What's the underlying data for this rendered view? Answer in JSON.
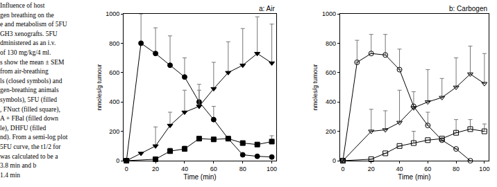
{
  "caption": [
    "Influence of host",
    "gen breathing on the",
    "e and metabolism of 5FU",
    "GH3 xenografts. 5FU",
    "dministered as an i.v.",
    "of 130 mg/kg/4 ml.",
    "s show the mean ± SEM",
    "from air-breathing",
    "ls (closed symbols) and",
    "gen-breathing animals",
    "symbols), 5FU (filled",
    ", FNuct (filled square),",
    "A + FBal (filled down",
    "le), DHFU (filled",
    "nd). From a semi-log plot",
    "5FU curve, the t1/2 for",
    "was calculated to be a",
    "3.8 min and b",
    "1.4 min"
  ],
  "chart_data": [
    {
      "type": "scatter",
      "title": "a: Air",
      "x_label": "Time (min)",
      "y_label": "nmoles/g tumour",
      "x": [
        0,
        10,
        20,
        30,
        40,
        50,
        60,
        70,
        80,
        90,
        100
      ],
      "xlim": [
        -2,
        103
      ],
      "xticks": [
        0,
        20,
        40,
        60,
        80,
        100
      ],
      "ylim": [
        0,
        1000
      ],
      "yticks": [
        0,
        200,
        400,
        600,
        800,
        1000
      ],
      "series": [
        {
          "color": "#000000",
          "marker": "circle",
          "line_style": "solid",
          "values": [
            0,
            800,
            730,
            650,
            570,
            400,
            280,
            150,
            40,
            30,
            25
          ],
          "error": [
            null,
            200,
            175,
            200,
            130,
            120,
            90,
            null,
            null,
            null,
            null
          ]
        },
        {
          "color": "#000000",
          "marker": "square",
          "line_style": "solid",
          "values": [
            0,
            null,
            10,
            65,
            80,
            150,
            145,
            150,
            120,
            110,
            130
          ],
          "error": [
            null,
            null,
            null,
            20,
            20,
            null,
            null,
            null,
            null,
            null,
            40
          ]
        },
        {
          "color": "#000000",
          "marker": "triangle-down",
          "line_style": "solid",
          "values": [
            0,
            50,
            100,
            240,
            330,
            370,
            490,
            600,
            650,
            730,
            665
          ],
          "error": [
            null,
            null,
            130,
            90,
            150,
            110,
            180,
            210,
            250,
            250,
            265
          ]
        }
      ]
    },
    {
      "type": "scatter",
      "title": "b: Carbogen",
      "x_label": "Time (min)",
      "y_label": "nmoles/g tumour",
      "x": [
        0,
        10,
        20,
        30,
        40,
        50,
        60,
        70,
        80,
        90,
        100
      ],
      "xlim": [
        -2,
        103
      ],
      "xticks": [
        0,
        20,
        40,
        60,
        80,
        100
      ],
      "ylim": [
        0,
        1000
      ],
      "yticks": [
        0,
        200,
        400,
        600,
        800,
        1000
      ],
      "series": [
        {
          "color": "#000000",
          "marker": "circle-open",
          "line_style": "solid",
          "values": [
            0,
            670,
            730,
            720,
            620,
            370,
            240,
            140,
            80,
            0,
            null
          ],
          "error": [
            null,
            150,
            130,
            140,
            140,
            100,
            90,
            null,
            null,
            null,
            null
          ]
        },
        {
          "color": "#000000",
          "marker": "square-open",
          "line_style": "solid",
          "values": [
            0,
            null,
            10,
            50,
            100,
            120,
            140,
            150,
            190,
            215,
            200
          ],
          "error": [
            null,
            null,
            null,
            null,
            null,
            80,
            null,
            null,
            90,
            65,
            50
          ]
        },
        {
          "color": "#000000",
          "marker": "triangle-down-open",
          "line_style": "solid",
          "values": [
            0,
            null,
            200,
            210,
            260,
            360,
            400,
            430,
            500,
            590,
            525
          ],
          "error": [
            null,
            null,
            150,
            130,
            220,
            null,
            220,
            130,
            200,
            190,
            205
          ]
        }
      ]
    }
  ]
}
